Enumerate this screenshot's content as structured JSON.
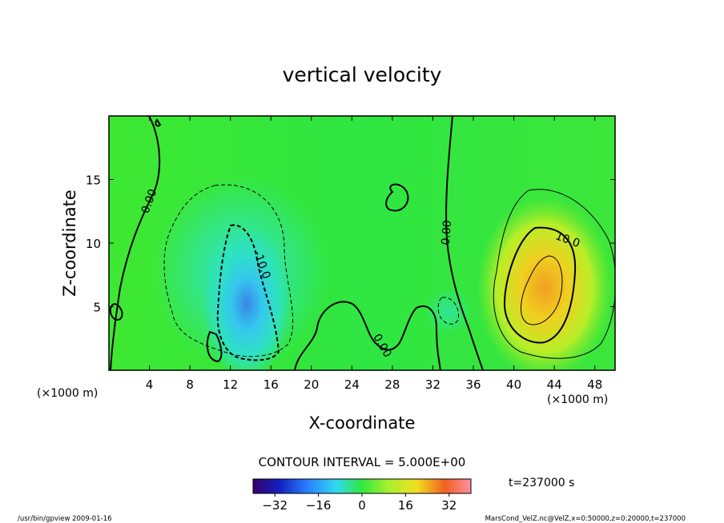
{
  "chart_data": {
    "type": "heatmap",
    "title": "vertical velocity",
    "xlabel": "X-coordinate",
    "ylabel": "Z-coordinate",
    "x_unit": "(×1000 m)",
    "y_unit": "(×1000 m)",
    "xlim": [
      0,
      50
    ],
    "ylim": [
      0,
      20
    ],
    "x_ticks": [
      4,
      8,
      12,
      16,
      20,
      24,
      28,
      32,
      36,
      40,
      44,
      48
    ],
    "y_ticks": [
      5,
      10,
      15
    ],
    "contour_interval_text": "CONTOUR INTERVAL = 5.000E+00",
    "contour_labels": [
      {
        "text": "0.00",
        "x": 4.3,
        "z": 13.2
      },
      {
        "text": "-10.0",
        "x": 14.8,
        "z": 8.2
      },
      {
        "text": "0.00",
        "x": 33.7,
        "z": 10.8
      },
      {
        "text": "10.0",
        "x": 45.2,
        "z": 10.0
      },
      {
        "text": "0.00",
        "x": 26.7,
        "z": 1.8
      }
    ],
    "updraft": {
      "x": 43,
      "z": 6.5,
      "peak": 24
    },
    "downdraft": {
      "x": 13.5,
      "z": 4,
      "peak": -22
    },
    "colorbar": {
      "range": [
        -40,
        40
      ],
      "ticks": [
        "−32",
        "−16",
        "0",
        "16",
        "32"
      ]
    },
    "time_label": "t=237000 s"
  },
  "footer": {
    "left": "/usr/bin/gpview   2009-01-16",
    "right": "MarsCond_VelZ.nc@VelZ,x=0:50000,z=0:20000,t=237000"
  }
}
